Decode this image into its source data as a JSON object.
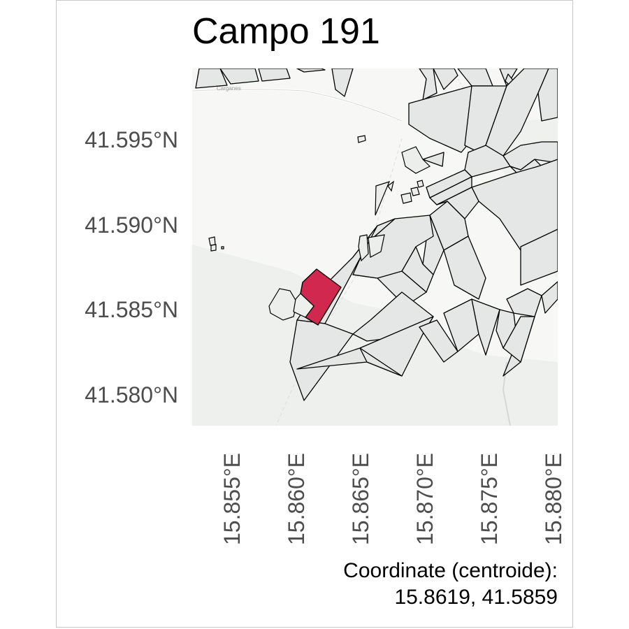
{
  "title": "Campo 191",
  "map": {
    "y_axis_labels": [
      "41.595°N",
      "41.590°N",
      "41.585°N",
      "41.580°N"
    ],
    "x_axis_labels": [
      "15.855°E",
      "15.860°E",
      "15.865°E",
      "15.870°E",
      "15.875°E",
      "15.880°E"
    ],
    "basemap_label": "Carganes",
    "highlight_color": "#d0284e",
    "parcel_fill": "#e4e7e5",
    "parcel_stroke": "#000000"
  },
  "caption": {
    "line1": "Coordinate (centroide):",
    "line2": "15.8619, 41.5859"
  }
}
